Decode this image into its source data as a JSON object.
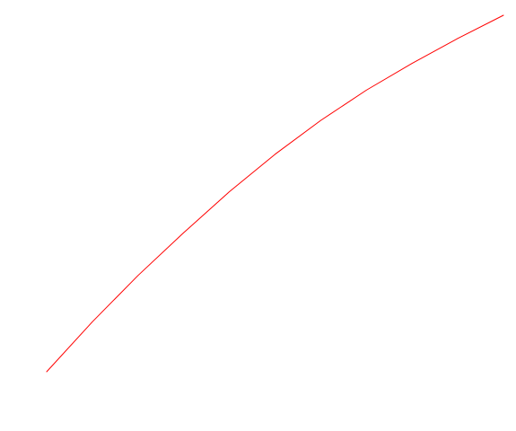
{
  "chart_data": {
    "type": "line",
    "title": "",
    "xlabel": "",
    "ylabel": "",
    "grid": false,
    "axes_visible": false,
    "xlim": [
      0,
      1
    ],
    "ylim": [
      0,
      1
    ],
    "series": [
      {
        "color": "#ff0000",
        "x": [
          0.0,
          0.1,
          0.2,
          0.3,
          0.4,
          0.5,
          0.6,
          0.7,
          0.8,
          0.9,
          1.0
        ],
        "y": [
          0.0,
          0.14,
          0.27,
          0.39,
          0.505,
          0.61,
          0.705,
          0.79,
          0.865,
          0.935,
          1.0
        ]
      }
    ]
  }
}
